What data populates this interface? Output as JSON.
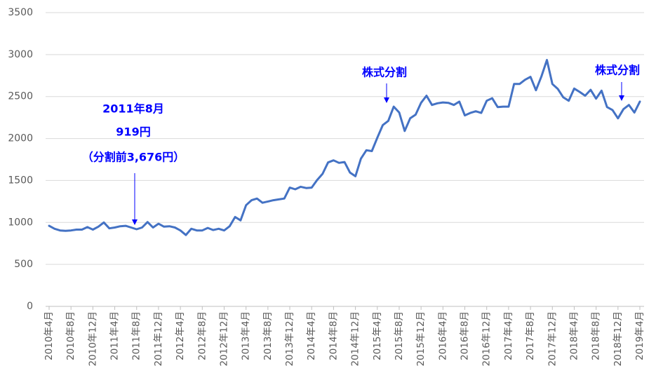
{
  "chart_data": {
    "type": "line",
    "categories": [
      "2010年4月",
      null,
      null,
      null,
      "2010年8月",
      null,
      null,
      null,
      "2010年12月",
      null,
      null,
      null,
      "2011年4月",
      null,
      null,
      null,
      "2011年8月",
      null,
      null,
      null,
      "2011年12月",
      null,
      null,
      null,
      "2012年4月",
      null,
      null,
      null,
      "2012年8月",
      null,
      null,
      null,
      "2012年12月",
      null,
      null,
      null,
      "2013年4月",
      null,
      null,
      null,
      "2013年8月",
      null,
      null,
      null,
      "2013年12月",
      null,
      null,
      null,
      "2014年4月",
      null,
      null,
      null,
      "2014年8月",
      null,
      null,
      null,
      "2014年12月",
      null,
      null,
      null,
      "2015年4月",
      null,
      null,
      null,
      "2015年8月",
      null,
      null,
      null,
      "2015年12月",
      null,
      null,
      null,
      "2016年4月",
      null,
      null,
      null,
      "2016年8月",
      null,
      null,
      null,
      "2016年12月",
      null,
      null,
      null,
      "2017年4月",
      null,
      null,
      null,
      "2017年8月",
      null,
      null,
      null,
      "2017年12月",
      null,
      null,
      null,
      "2018年4月",
      null,
      null,
      null,
      "2018年8月",
      null,
      null,
      null,
      "2018年12月",
      null,
      null,
      null,
      "2019年4月"
    ],
    "values": [
      960,
      925,
      905,
      900,
      905,
      915,
      915,
      945,
      915,
      950,
      1000,
      930,
      940,
      955,
      960,
      940,
      919,
      940,
      1005,
      940,
      985,
      950,
      955,
      940,
      905,
      850,
      925,
      905,
      905,
      935,
      910,
      925,
      905,
      955,
      1065,
      1025,
      1205,
      1265,
      1285,
      1235,
      1250,
      1265,
      1275,
      1285,
      1415,
      1395,
      1425,
      1410,
      1415,
      1505,
      1580,
      1715,
      1740,
      1710,
      1720,
      1595,
      1550,
      1760,
      1860,
      1850,
      2010,
      2160,
      2210,
      2380,
      2310,
      2090,
      2240,
      2285,
      2425,
      2510,
      2400,
      2420,
      2430,
      2425,
      2400,
      2440,
      2275,
      2305,
      2325,
      2305,
      2450,
      2480,
      2375,
      2380,
      2380,
      2650,
      2650,
      2700,
      2735,
      2575,
      2740,
      2935,
      2650,
      2590,
      2490,
      2450,
      2595,
      2555,
      2510,
      2580,
      2475,
      2570,
      2375,
      2340,
      2240,
      2350,
      2400,
      2310,
      2440
    ],
    "color": "#4472c4",
    "ylim": [
      0,
      3500
    ],
    "yticks": [
      0,
      500,
      1000,
      1500,
      2000,
      2500,
      3000,
      3500
    ],
    "grid": true,
    "annotations": [
      "2011年8月",
      "919円",
      "（分割前3,676円）",
      "株式分割",
      "株式分割"
    ]
  }
}
